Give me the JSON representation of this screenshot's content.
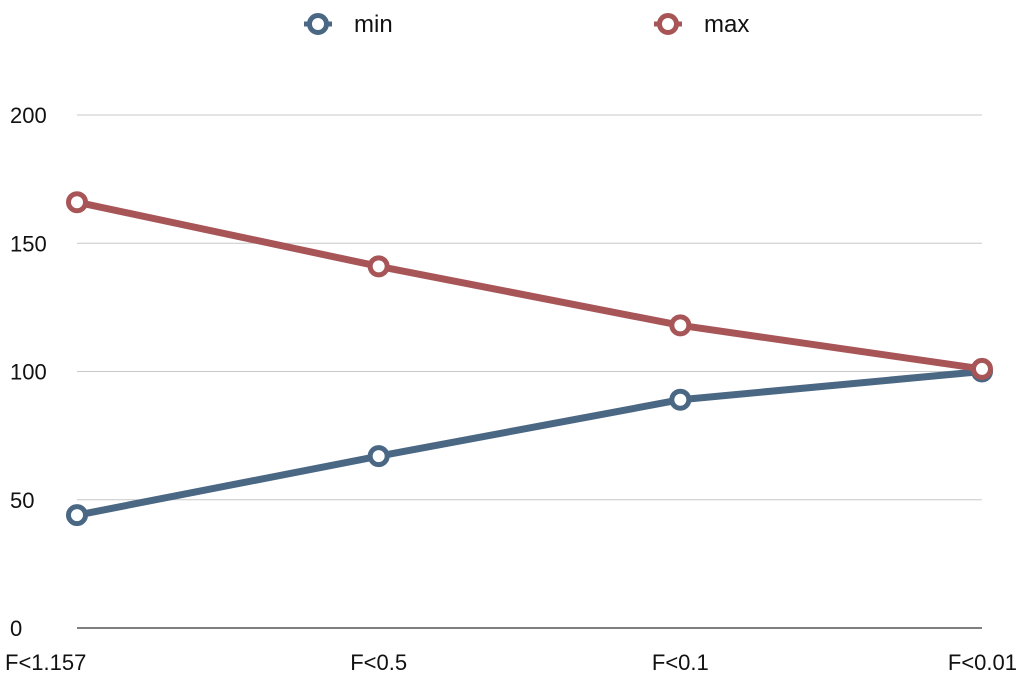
{
  "chart_data": {
    "type": "line",
    "categories": [
      "F<1.157",
      "F<0.5",
      "F<0.1",
      "F<0.01"
    ],
    "series": [
      {
        "name": "min",
        "values": [
          44,
          67,
          89,
          100
        ],
        "color": "#4a6784"
      },
      {
        "name": "max",
        "values": [
          166,
          141,
          118,
          101
        ],
        "color": "#a85558"
      }
    ],
    "ylim": [
      0,
      200
    ],
    "yticks": [
      0,
      50,
      100,
      150,
      200
    ],
    "grid": true,
    "legend_position": "top-center",
    "marker": "hollow-circle"
  }
}
